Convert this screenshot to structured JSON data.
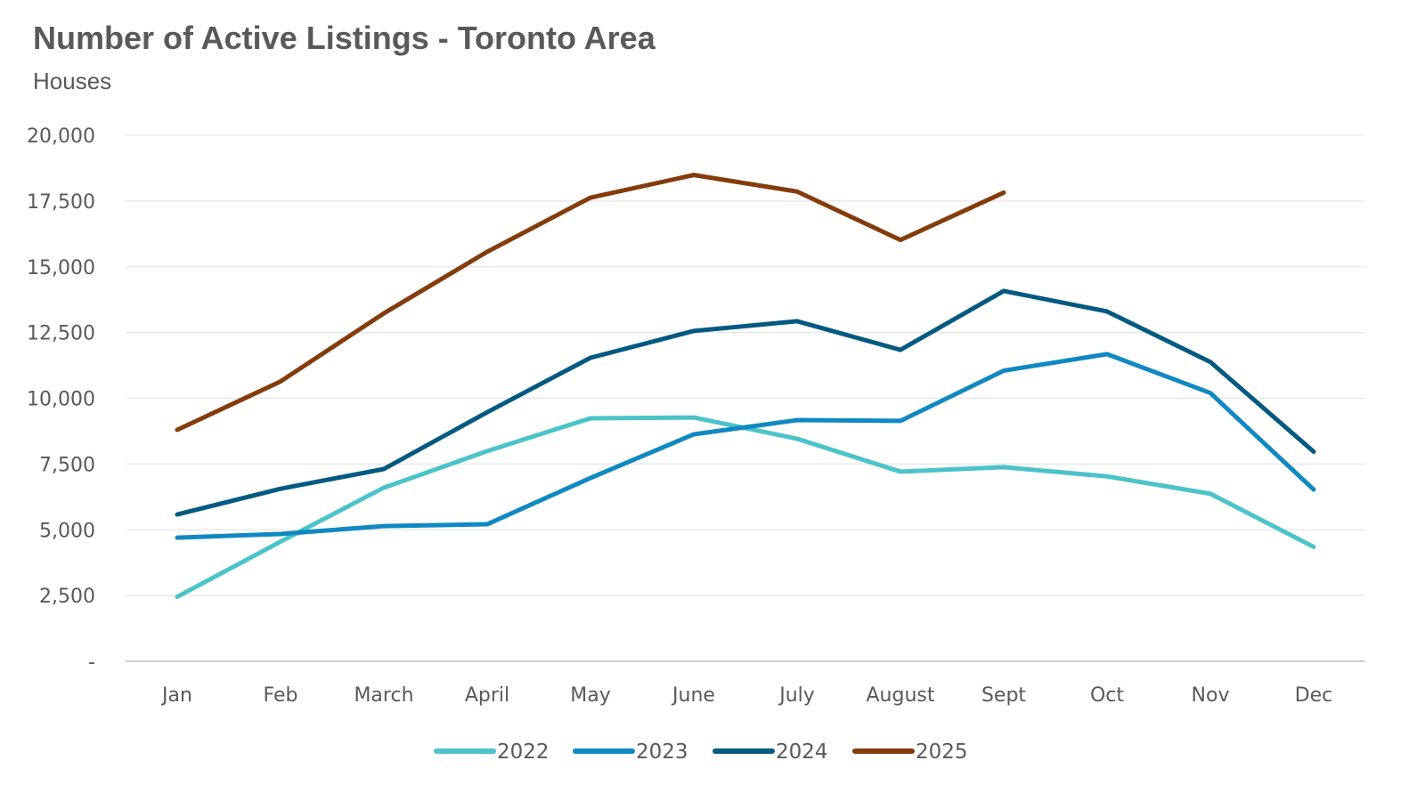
{
  "chart_data": {
    "type": "line",
    "title": "Number of Active Listings - Toronto Area",
    "subtitle": "Houses",
    "xlabel": "",
    "ylabel": "",
    "categories": [
      "Jan",
      "Feb",
      "March",
      "April",
      "May",
      "June",
      "July",
      "August",
      "Sept",
      "Oct",
      "Nov",
      "Dec"
    ],
    "ylim": [
      0,
      20000
    ],
    "yticks": [
      0,
      2500,
      5000,
      7500,
      10000,
      12500,
      15000,
      17500,
      20000
    ],
    "ytick_labels": [
      "-",
      "2,500",
      "5,000",
      "7,500",
      "10,000",
      "12,500",
      "15,000",
      "17,500",
      "20,000"
    ],
    "grid": true,
    "legend_position": "bottom",
    "series": [
      {
        "name": "2022",
        "color": "#4bc3c9",
        "values": [
          2450,
          4550,
          6600,
          7990,
          9240,
          9270,
          8460,
          7210,
          7380,
          7030,
          6370,
          4350
        ]
      },
      {
        "name": "2023",
        "color": "#1089c2",
        "values": [
          4700,
          4840,
          5140,
          5210,
          6970,
          8630,
          9170,
          9140,
          11050,
          11680,
          10200,
          6530
        ]
      },
      {
        "name": "2024",
        "color": "#035a80",
        "values": [
          5580,
          6560,
          7310,
          9470,
          11540,
          12560,
          12930,
          11840,
          14080,
          13300,
          11380,
          7970
        ]
      },
      {
        "name": "2025",
        "color": "#843c0c",
        "values": [
          8800,
          10640,
          13230,
          15570,
          17630,
          18490,
          17860,
          16020,
          17820,
          null,
          null,
          null
        ]
      }
    ]
  }
}
